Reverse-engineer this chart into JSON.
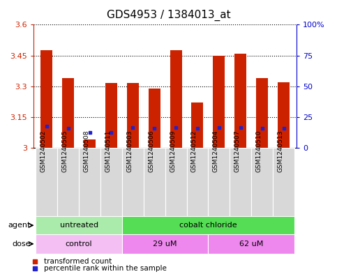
{
  "title": "GDS4953 / 1384013_at",
  "samples": [
    "GSM1240502",
    "GSM1240505",
    "GSM1240508",
    "GSM1240511",
    "GSM1240503",
    "GSM1240506",
    "GSM1240509",
    "GSM1240512",
    "GSM1240504",
    "GSM1240507",
    "GSM1240510",
    "GSM1240513"
  ],
  "bar_values": [
    3.475,
    3.34,
    3.04,
    3.315,
    3.315,
    3.29,
    3.475,
    3.22,
    3.45,
    3.46,
    3.34,
    3.32
  ],
  "blue_values": [
    3.105,
    3.095,
    3.075,
    3.075,
    3.1,
    3.095,
    3.1,
    3.095,
    3.1,
    3.1,
    3.095,
    3.095
  ],
  "bar_base": 3.0,
  "ylim_left": [
    3.0,
    3.6
  ],
  "ylim_right": [
    0,
    100
  ],
  "yticks_left": [
    3.0,
    3.15,
    3.3,
    3.45,
    3.6
  ],
  "yticks_right": [
    0,
    25,
    50,
    75,
    100
  ],
  "ytick_labels_left": [
    "3",
    "3.15",
    "3.3",
    "3.45",
    "3.6"
  ],
  "ytick_labels_right": [
    "0",
    "25",
    "50",
    "75",
    "100%"
  ],
  "agent_groups": [
    {
      "label": "untreated",
      "start": 0,
      "end": 4,
      "color": "#AAEAAA"
    },
    {
      "label": "cobalt chloride",
      "start": 4,
      "end": 12,
      "color": "#55DD55"
    }
  ],
  "dose_groups": [
    {
      "label": "control",
      "start": 0,
      "end": 4,
      "color": "#F4C0F4"
    },
    {
      "label": "29 uM",
      "start": 4,
      "end": 8,
      "color": "#EE88EE"
    },
    {
      "label": "62 uM",
      "start": 8,
      "end": 12,
      "color": "#EE88EE"
    }
  ],
  "bar_color": "#CC2200",
  "blue_color": "#2222CC",
  "bar_width": 0.55,
  "legend_items": [
    {
      "label": "transformed count",
      "color": "#CC2200"
    },
    {
      "label": "percentile rank within the sample",
      "color": "#2222CC"
    }
  ],
  "label_color_left": "#CC2200",
  "label_color_right": "#0000CC",
  "tick_label_fontsize": 8,
  "title_fontsize": 11,
  "sample_label_fontsize": 6.5,
  "background_plot": "white",
  "sample_bg_color": "#D8D8D8"
}
